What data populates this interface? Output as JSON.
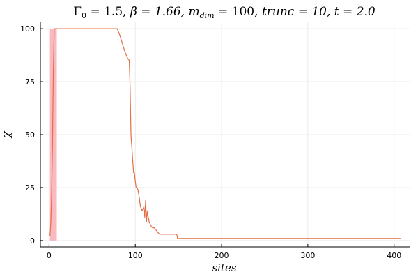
{
  "chart_data": {
    "type": "line",
    "title": "Γ₀ = 1.5, β = 1.66, m_dim = 100, trunc = 10, t = 2.0",
    "title_parts": {
      "gamma_sym": "Γ",
      "gamma_sub": "0",
      "gamma_val": " = 1.5, ",
      "beta": "β = 1.66, ",
      "m_sym": "m",
      "m_sub": "dim",
      "m_val": " = 100, ",
      "trunc": "trunc = 10, t = 2.0"
    },
    "xlabel": "sites",
    "ylabel": "χ",
    "xlim": [
      -10,
      418
    ],
    "ylim": [
      -3,
      103
    ],
    "xticks": [
      0,
      100,
      200,
      300,
      400
    ],
    "yticks": [
      0,
      25,
      50,
      75,
      100
    ],
    "grid": true,
    "legend": "none",
    "line_color": "#e26f46",
    "band_color": "#f8b9c0",
    "band": {
      "x0": 1,
      "x1": 9,
      "y0": 0,
      "y1": 100
    },
    "series": [
      {
        "x": [
          1,
          2,
          3,
          4,
          5,
          6,
          7,
          8,
          9,
          10,
          20,
          40,
          60,
          79,
          82,
          85,
          88,
          91,
          93,
          94,
          95,
          96,
          97,
          98,
          99,
          100,
          101,
          102,
          103,
          104,
          105,
          106,
          107,
          108,
          109,
          110,
          111,
          112,
          113,
          114,
          115,
          116,
          117,
          118,
          120,
          122,
          124,
          126,
          128,
          130,
          133,
          140,
          148,
          149,
          200,
          300,
          408
        ],
        "y": [
          2,
          8,
          22,
          45,
          80,
          100,
          100,
          100,
          100,
          100,
          100,
          100,
          100,
          100,
          97,
          93,
          89,
          86,
          85,
          72,
          50,
          44,
          38,
          32,
          32,
          28,
          25,
          25,
          24,
          22,
          19,
          16,
          15,
          14,
          15,
          16,
          11,
          19,
          9,
          14,
          11,
          9,
          8,
          7,
          6,
          6,
          5,
          4,
          3,
          3,
          3,
          3,
          3,
          1,
          1,
          1,
          1
        ]
      }
    ]
  }
}
